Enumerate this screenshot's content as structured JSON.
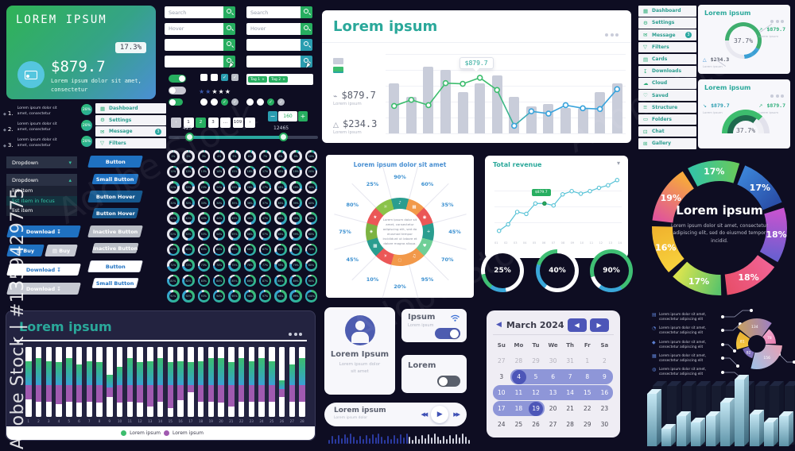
{
  "watermark": {
    "side_text": "Adobe Stock | #1359429775",
    "diag_text": "Adobe Stock"
  },
  "promo_card": {
    "title": "LOREM IPSUM",
    "badge": "17.3%",
    "amount": "$879.7",
    "desc": "Lorem ipsum dolor sit amet, consectetur"
  },
  "ranked_list": [
    {
      "num": "1.",
      "line1": "Lorem ipsum dolor sit",
      "line2": "amet, consectetur",
      "pct": "28%"
    },
    {
      "num": "2.",
      "line1": "Lorem ipsum dolor sit",
      "line2": "amet, consectetur",
      "pct": "28%"
    },
    {
      "num": "3.",
      "line1": "Lorem ipsum dolor sit",
      "line2": "amet, consectetur",
      "pct": "28%"
    }
  ],
  "mini_menu": [
    {
      "icon": "▦",
      "label": "Dashboard"
    },
    {
      "icon": "⚙",
      "label": "Settings"
    },
    {
      "icon": "✉",
      "label": "Message",
      "badge": "3"
    },
    {
      "icon": "▽",
      "label": "Filters"
    }
  ],
  "search": {
    "col_a": [
      {
        "value": "Search"
      },
      {
        "value": "Hover"
      },
      {
        "value": ""
      },
      {
        "value": "",
        "cursor": true
      }
    ],
    "col_b": [
      {
        "value": "Search"
      },
      {
        "value": "Hover"
      },
      {
        "value": ""
      },
      {
        "value": "",
        "cursor": true
      }
    ]
  },
  "controls": {
    "toggles": [
      {
        "state": "on"
      },
      {
        "state": "off"
      },
      {
        "state": "small-on"
      }
    ],
    "checkboxes": [
      {
        "checked": false,
        "style": "plain"
      },
      {
        "checked": false,
        "style": "plain"
      },
      {
        "checked": true,
        "style": "teal"
      },
      {
        "checked": true,
        "style": "gray"
      }
    ],
    "rating": {
      "filled": 2,
      "total": 5
    },
    "radios_a": [
      {
        "checked": false,
        "style": "plain"
      },
      {
        "checked": false,
        "style": "plain"
      },
      {
        "checked": true,
        "style": "teal"
      },
      {
        "checked": true,
        "style": "gray"
      }
    ],
    "radios_b": [
      {
        "checked": false,
        "style": "plain"
      },
      {
        "checked": false,
        "style": "plain"
      },
      {
        "checked": true,
        "style": "teal"
      },
      {
        "checked": true,
        "style": "gray"
      }
    ],
    "tags": [
      {
        "label": "Tag 1",
        "close": "×"
      },
      {
        "label": "Tag 2",
        "close": "×"
      }
    ]
  },
  "pagination": {
    "items": [
      "‹",
      "1",
      "2",
      "3",
      "...",
      "109",
      "›"
    ],
    "active": "2"
  },
  "stepper": {
    "minus": "−",
    "value": "160",
    "plus": "+"
  },
  "range_slider": {
    "min_label": "425",
    "max_label": "12465"
  },
  "dropdown_closed": {
    "label": "Dropdown",
    "chevron": "▾"
  },
  "dropdown_open": {
    "label": "Dropdown",
    "chevron": "▴",
    "items": [
      "list item",
      "list item in focus",
      "list item"
    ],
    "focused_index": 1
  },
  "cta": {
    "download": "Download",
    "buy": "Buy",
    "download_icon": "↧",
    "buy_icon": "▤"
  },
  "button_stack": [
    {
      "label": "Button",
      "style": "primary",
      "size": "lg"
    },
    {
      "label": "Small Button",
      "style": "primary",
      "size": "sm"
    },
    {
      "label": "Button Hover",
      "style": "hover",
      "size": "lg"
    },
    {
      "label": "Button Hover",
      "style": "hover",
      "size": "sm"
    },
    {
      "label": "Inactive Button",
      "style": "inactive",
      "size": "lg"
    },
    {
      "label": "Inactive Button",
      "style": "inactive",
      "size": "sm"
    },
    {
      "label": "Button",
      "style": "ghost",
      "size": "lg"
    },
    {
      "label": "Small Button",
      "style": "ghost",
      "size": "sm"
    }
  ],
  "progress_grid": {
    "from": 1,
    "to": 100,
    "suffix": "%"
  },
  "main_chart": {
    "title": "Lorem ipsum",
    "stat1": {
      "value": "$879.7",
      "label": "Lorem ipsum"
    },
    "stat2": {
      "value": "$234.3",
      "label": "Lorem ipsum"
    },
    "tooltip": "$879.7",
    "tooltip_index": 5,
    "chart_data": {
      "type": "bar+line",
      "bars": [
        64,
        47,
        86,
        82,
        53,
        64,
        74,
        47,
        35,
        38,
        33,
        33,
        53,
        64
      ],
      "line": [
        36,
        44,
        37,
        66,
        65,
        73,
        57,
        10,
        29,
        26,
        37,
        33,
        32,
        58
      ],
      "ylim": [
        0,
        100
      ]
    }
  },
  "radial_card": {
    "title": "Lorem ipsum dolor sit amet",
    "center_text": "Lorem ipsum dolor sit amet, consectetur adipiscing elit, sed do eiusmod tempor incididunt ut labore et dolore magna aliqua.",
    "segments": [
      {
        "pct": "90%",
        "icon": "♪",
        "color": "#2a9d8f"
      },
      {
        "pct": "60%",
        "icon": "▦",
        "color": "#f2994a"
      },
      {
        "pct": "35%",
        "icon": "◉",
        "color": "#eb5757"
      },
      {
        "pct": "45%",
        "icon": "+",
        "color": "#2a9d8f"
      },
      {
        "pct": "70%",
        "icon": "♥",
        "color": "#6fcf97"
      },
      {
        "pct": "95%",
        "icon": "♫",
        "color": "#f2994a"
      },
      {
        "pct": "20%",
        "icon": "◌",
        "color": "#f2994a"
      },
      {
        "pct": "10%",
        "icon": "☀",
        "color": "#eb5757"
      },
      {
        "pct": "45%",
        "icon": "▩",
        "color": "#2a9d8f"
      },
      {
        "pct": "75%",
        "icon": "◈",
        "color": "#7cb342"
      },
      {
        "pct": "80%",
        "icon": "★",
        "color": "#eb5757"
      },
      {
        "pct": "25%",
        "icon": "☼",
        "color": "#8bc34a"
      }
    ]
  },
  "revenue": {
    "title": "Total revenue",
    "chevron": "▾",
    "tooltip": "$879.7",
    "tooltip_index": 5,
    "x_labels": [
      "01",
      "02",
      "03",
      "04",
      "05",
      "06",
      "07",
      "08",
      "09",
      "10",
      "11",
      "12",
      "13",
      "14"
    ],
    "chart_data": {
      "type": "line",
      "values": [
        4,
        14,
        33,
        30,
        46,
        46,
        43,
        60,
        65,
        61,
        65,
        70,
        74,
        82
      ],
      "ylim": [
        0,
        100
      ]
    }
  },
  "donut_trio": [
    {
      "label": "25%",
      "stops": [
        [
          "#ffffff",
          0,
          170
        ],
        [
          "#3aa7d9",
          170,
          215
        ],
        [
          "#3fbf74",
          215,
          260
        ],
        [
          "#ffffff",
          260,
          360
        ]
      ]
    },
    {
      "label": "40%",
      "stops": [
        [
          "#ffffff",
          0,
          216
        ],
        [
          "#3aa7d9",
          216,
          288
        ],
        [
          "#3fbf74",
          288,
          360
        ]
      ]
    },
    {
      "label": "90%",
      "stops": [
        [
          "#3fbf74",
          0,
          150
        ],
        [
          "#3aa7d9",
          150,
          216
        ],
        [
          "#ffffff",
          216,
          252
        ],
        [
          "#3fbf74",
          252,
          360
        ]
      ]
    }
  ],
  "right_menu": [
    {
      "icon": "▦",
      "label": "Dashboard"
    },
    {
      "icon": "⚙",
      "label": "Settings"
    },
    {
      "icon": "✉",
      "label": "Message",
      "badge": "3"
    },
    {
      "icon": "▽",
      "label": "Filters"
    },
    {
      "icon": "▤",
      "label": "Cards"
    },
    {
      "icon": "↧",
      "label": "Downloads"
    },
    {
      "icon": "☁",
      "label": "Cloud"
    },
    {
      "icon": "♡",
      "label": "Saved"
    },
    {
      "icon": "≡",
      "label": "Structure"
    },
    {
      "icon": "▭",
      "label": "Folders"
    },
    {
      "icon": "⊡",
      "label": "Chat"
    },
    {
      "icon": "⊞",
      "label": "Gallery"
    }
  ],
  "right_card1": {
    "title": "Lorem ipsum",
    "donut_label": "37.7%",
    "stat_top": {
      "value": "$879.7",
      "label": "Lorem ipsum"
    },
    "stat_bottom": {
      "value": "$234.3",
      "label": "Lorem ipsum"
    }
  },
  "right_card2": {
    "title": "Lorem ipsum",
    "gauge_label": "37.7%",
    "stat_left": {
      "value": "$879.7",
      "label": "Lorem ipsum"
    },
    "stat_right": {
      "value": "$879.7",
      "label": "Lorem ipsum"
    }
  },
  "big_donut": {
    "title": "Lorem ipsum",
    "desc": "Lorem ipsum dolor sit amet, consectetur adipiscing elit, sed do eiusmod tempor incidid.",
    "chart_data": {
      "type": "donut",
      "segments": [
        {
          "label": "17%",
          "value": 17,
          "c1": "#35c4a4",
          "c2": "#66c95e"
        },
        {
          "label": "17%",
          "value": 17,
          "c1": "#3b82d6",
          "c2": "#2a4fa8"
        },
        {
          "label": "18%",
          "value": 18,
          "c1": "#c653cf",
          "c2": "#6b5fd0"
        },
        {
          "label": "18%",
          "value": 18,
          "c1": "#f06292",
          "c2": "#e84f6b"
        },
        {
          "label": "17%",
          "value": 17,
          "c1": "#5bc46a",
          "c2": "#d9e44f"
        },
        {
          "label": "16%",
          "value": 16,
          "c1": "#f7d03c",
          "c2": "#f0b32e"
        },
        {
          "label": "19%",
          "value": 19,
          "c1": "#e0559a",
          "c2": "#f7a93c"
        }
      ]
    }
  },
  "calendar": {
    "back": "◀",
    "title": "March 2024",
    "prev": "◀",
    "next": "▶",
    "days": [
      "Su",
      "Mo",
      "Tu",
      "We",
      "Th",
      "Fr",
      "Sa"
    ],
    "weeks": [
      [
        27,
        28,
        29,
        30,
        31,
        1,
        2
      ],
      [
        3,
        4,
        5,
        6,
        7,
        8,
        9
      ],
      [
        10,
        11,
        12,
        13,
        14,
        15,
        16
      ],
      [
        17,
        18,
        19,
        20,
        21,
        22,
        23
      ],
      [
        24,
        25,
        26,
        27,
        28,
        29,
        30
      ]
    ],
    "muted_week": 0,
    "range": {
      "start": 4,
      "end": 19,
      "dark": [
        4,
        19
      ]
    }
  },
  "profile_card": {
    "name": "Lorem Ipsum",
    "line1": "Lorem ipsum dolor",
    "line2": "sit amet"
  },
  "wifi_card": {
    "title": "Ipsum",
    "sub": "Lorem ipsum",
    "toggle": "on"
  },
  "lorem_card": {
    "title": "Lorem",
    "toggle": "off"
  },
  "player": {
    "title": "Lorem ipsum",
    "sub": "Lorem ipsum dolor",
    "prev": "◀◀",
    "play": "▶",
    "next": "▶▶"
  },
  "waveform": {
    "bars": 46,
    "played": 26
  },
  "bottom_panel": {
    "title": "Lorem ipsum",
    "legend": [
      {
        "label": "Lorem ipsum",
        "color": "#3dbd6e"
      },
      {
        "label": "Lorem ipsum",
        "color": "#a05ab0"
      }
    ],
    "x_from": 1,
    "x_to": 28,
    "chart_data": {
      "type": "stacked-bar",
      "bars": [
        [
          20,
          55,
          75
        ],
        [
          16,
          55,
          78
        ],
        [
          20,
          55,
          78
        ],
        [
          22,
          55,
          82
        ],
        [
          16,
          55,
          78
        ],
        [
          25,
          55,
          80
        ],
        [
          20,
          55,
          78
        ],
        [
          22,
          55,
          80
        ],
        [
          40,
          58,
          72
        ],
        [
          28,
          55,
          80
        ],
        [
          16,
          55,
          78
        ],
        [
          22,
          55,
          80
        ],
        [
          20,
          55,
          85
        ],
        [
          16,
          55,
          78
        ],
        [
          22,
          55,
          88
        ],
        [
          20,
          55,
          76
        ],
        [
          22,
          55,
          65
        ],
        [
          20,
          55,
          78
        ],
        [
          16,
          55,
          78
        ],
        [
          16,
          55,
          80
        ],
        [
          22,
          55,
          85
        ],
        [
          16,
          55,
          78
        ],
        [
          20,
          55,
          78
        ],
        [
          16,
          55,
          78
        ],
        [
          20,
          55,
          78
        ],
        [
          48,
          60,
          72
        ],
        [
          25,
          55,
          78
        ],
        [
          16,
          55,
          78
        ]
      ]
    }
  },
  "circuit": {
    "items": [
      {
        "icon": "▤",
        "line1": "Lorem ipsum dolor sit amet,",
        "line2": "consectetur adipiscing elit"
      },
      {
        "icon": "◔",
        "line1": "Lorem ipsum dolor sit amet,",
        "line2": "consectetur adipiscing elit"
      },
      {
        "icon": "◆",
        "line1": "Lorem ipsum dolor sit amet,",
        "line2": "consectetur adipiscing elit"
      },
      {
        "icon": "▦",
        "line1": "Lorem ipsum dolor sit amet,",
        "line2": "consectetur adipiscing elit"
      },
      {
        "icon": "◍",
        "line1": "Lorem ipsum dolor sit amet,",
        "line2": "consectetur adipiscing elit"
      }
    ],
    "chart_data": {
      "type": "pie",
      "values": [
        134,
        78,
        156,
        82,
        81
      ],
      "radii": [
        32,
        24,
        32,
        19,
        26
      ],
      "colors": [
        [
          "#c9a15f",
          "#9d7fc4"
        ],
        [
          "#f0a8cc",
          "#e87fb0"
        ],
        [
          "#e8a0b4",
          "#9ec2e8"
        ],
        [
          "#8878c3",
          "#6f60b0"
        ],
        [
          "#f5c842",
          "#e8b030"
        ]
      ]
    }
  },
  "bars_3d": {
    "chart_data": {
      "type": "3d-bar",
      "values": [
        66,
        22,
        38,
        30,
        38,
        55,
        84,
        40,
        30,
        38
      ]
    }
  }
}
